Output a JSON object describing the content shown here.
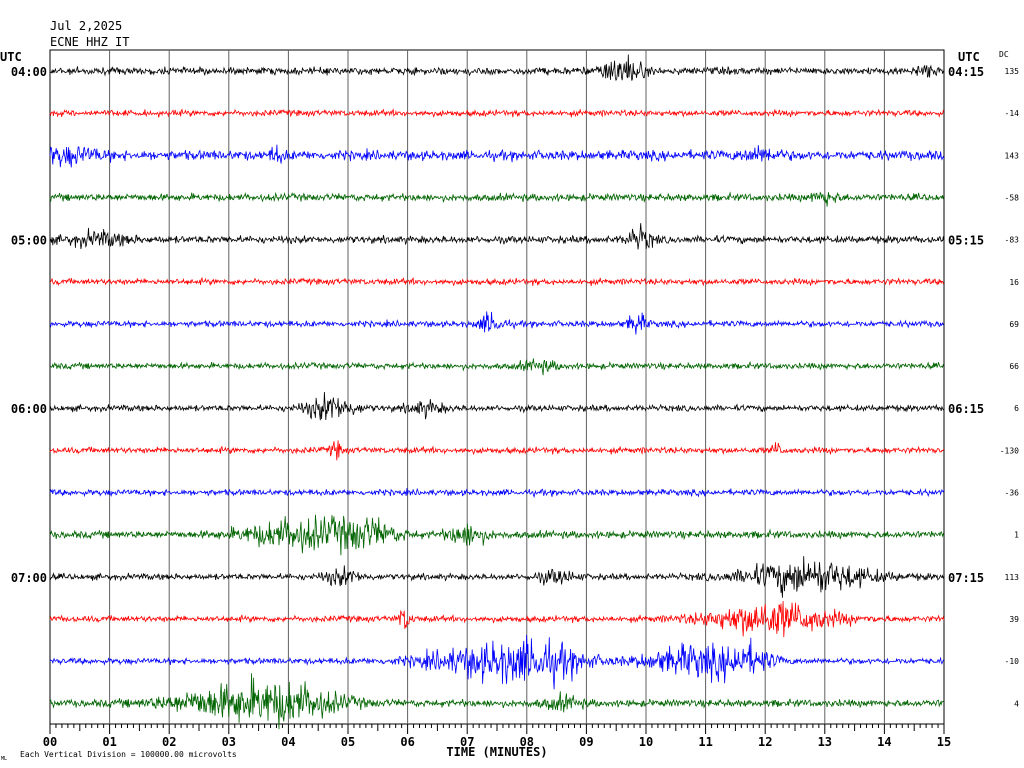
{
  "header": {
    "date": "Jul 2,2025",
    "station": "ECNE HHZ IT"
  },
  "left_tz": "UTC",
  "right_tz": "UTC",
  "dc_label": "DC",
  "footer": {
    "scale_note": "Each Vertical Division = 100000.00 microvolts",
    "corner_mark": "ML"
  },
  "colors": {
    "black": "#000000",
    "red": "#ff0000",
    "blue": "#0000ff",
    "green": "#006400",
    "grid": "#000000"
  },
  "chart_data": {
    "type": "line",
    "title": "",
    "xlabel": "TIME (MINUTES)",
    "ylabel": "",
    "xlim": [
      0,
      15
    ],
    "x_ticks": [
      "00",
      "01",
      "02",
      "03",
      "04",
      "05",
      "06",
      "07",
      "08",
      "09",
      "10",
      "11",
      "12",
      "13",
      "14",
      "15"
    ],
    "grid": true,
    "traces": [
      {
        "color": "black",
        "left": "04:00",
        "right": "04:15",
        "dc": "135",
        "amp": 3,
        "events": [
          [
            9.6,
            12,
            0.3
          ],
          [
            14.7,
            4,
            0.2
          ]
        ]
      },
      {
        "color": "red",
        "left": "",
        "right": "",
        "dc": "-14",
        "amp": 2.5,
        "events": []
      },
      {
        "color": "blue",
        "left": "",
        "right": "",
        "dc": "143",
        "amp": 4,
        "events": [
          [
            0.2,
            6,
            0.6
          ],
          [
            3.8,
            6,
            0.1
          ],
          [
            11.9,
            5,
            0.3
          ]
        ]
      },
      {
        "color": "green",
        "left": "",
        "right": "",
        "dc": "-58",
        "amp": 3,
        "events": [
          [
            13.0,
            5,
            0.2
          ]
        ]
      },
      {
        "color": "black",
        "left": "05:00",
        "right": "05:15",
        "dc": "-83",
        "amp": 3,
        "events": [
          [
            0.8,
            5,
            0.5
          ],
          [
            9.9,
            9,
            0.2
          ]
        ]
      },
      {
        "color": "red",
        "left": "",
        "right": "",
        "dc": "16",
        "amp": 2.5,
        "events": []
      },
      {
        "color": "blue",
        "left": "",
        "right": "",
        "dc": "69",
        "amp": 2.5,
        "events": [
          [
            7.4,
            8,
            0.2
          ],
          [
            9.85,
            8,
            0.15
          ]
        ]
      },
      {
        "color": "green",
        "left": "",
        "right": "",
        "dc": "66",
        "amp": 2.5,
        "events": [
          [
            8.2,
            4,
            0.3
          ]
        ]
      },
      {
        "color": "black",
        "left": "06:00",
        "right": "06:15",
        "dc": "6",
        "amp": 2.5,
        "events": [
          [
            4.7,
            10,
            0.4
          ],
          [
            6.3,
            5,
            0.3
          ]
        ]
      },
      {
        "color": "red",
        "left": "",
        "right": "",
        "dc": "-130",
        "amp": 2.5,
        "events": [
          [
            4.8,
            6,
            0.1
          ],
          [
            12.2,
            5,
            0.1
          ]
        ]
      },
      {
        "color": "blue",
        "left": "",
        "right": "",
        "dc": "-36",
        "amp": 2.5,
        "events": []
      },
      {
        "color": "green",
        "left": "",
        "right": "",
        "dc": "1",
        "amp": 3,
        "events": [
          [
            4.2,
            12,
            0.9
          ],
          [
            5.3,
            10,
            0.5
          ],
          [
            7.0,
            9,
            0.3
          ]
        ]
      },
      {
        "color": "black",
        "left": "07:00",
        "right": "07:15",
        "dc": "113",
        "amp": 2.5,
        "events": [
          [
            4.9,
            6,
            0.3
          ],
          [
            8.5,
            5,
            0.3
          ],
          [
            12.7,
            14,
            1.0
          ]
        ]
      },
      {
        "color": "red",
        "left": "",
        "right": "",
        "dc": "39",
        "amp": 2.5,
        "events": [
          [
            5.95,
            9,
            0.1
          ],
          [
            12.1,
            14,
            1.0
          ]
        ]
      },
      {
        "color": "blue",
        "left": "",
        "right": "",
        "dc": "-10",
        "amp": 2.5,
        "events": [
          [
            7.3,
            12,
            1.0
          ],
          [
            8.3,
            12,
            0.7
          ],
          [
            10.8,
            12,
            0.8
          ],
          [
            11.7,
            10,
            0.4
          ]
        ]
      },
      {
        "color": "green",
        "left": "",
        "right": "",
        "dc": "4",
        "amp": 3,
        "events": [
          [
            3.0,
            12,
            1.0
          ],
          [
            4.1,
            12,
            0.8
          ],
          [
            8.6,
            5,
            0.3
          ]
        ]
      }
    ]
  }
}
